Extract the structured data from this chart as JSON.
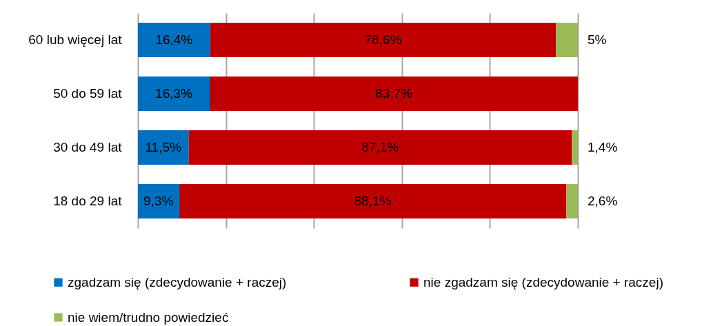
{
  "chart_data": {
    "type": "bar",
    "orientation": "horizontal",
    "stacked": true,
    "categories": [
      "60 lub więcej lat",
      "50 do 59 lat",
      "30 do 49 lat",
      "18 do 29 lat"
    ],
    "series": [
      {
        "name": "zgadzam się (zdecydowanie + raczej)",
        "color": "#0070c0",
        "values": [
          16.4,
          16.3,
          11.5,
          9.3
        ],
        "value_labels": [
          "16,4%",
          "16,3%",
          "11,5%",
          "9,3%"
        ]
      },
      {
        "name": "nie zgadzam się (zdecydowanie + raczej)",
        "color": "#c00000",
        "values": [
          78.6,
          83.7,
          87.1,
          88.1
        ],
        "value_labels": [
          "78,6%",
          "83,7%",
          "87,1%",
          "88,1%"
        ]
      },
      {
        "name": "nie wiem/trudno powiedzieć",
        "color": "#9bbb59",
        "values": [
          5,
          null,
          1.4,
          2.6
        ],
        "value_labels": [
          "5%",
          null,
          "1,4%",
          "2,6%"
        ]
      }
    ],
    "xlim": [
      0,
      100
    ],
    "xticks": [
      {
        "value": 0,
        "label": null
      },
      {
        "value": 20,
        "label": null
      },
      {
        "value": 40,
        "label": null
      },
      {
        "value": 60,
        "label": null
      },
      {
        "value": 80,
        "label": null
      },
      {
        "value": 100,
        "label": null
      }
    ],
    "grid": "x",
    "tick_labels": "y",
    "legend": "bottom"
  }
}
